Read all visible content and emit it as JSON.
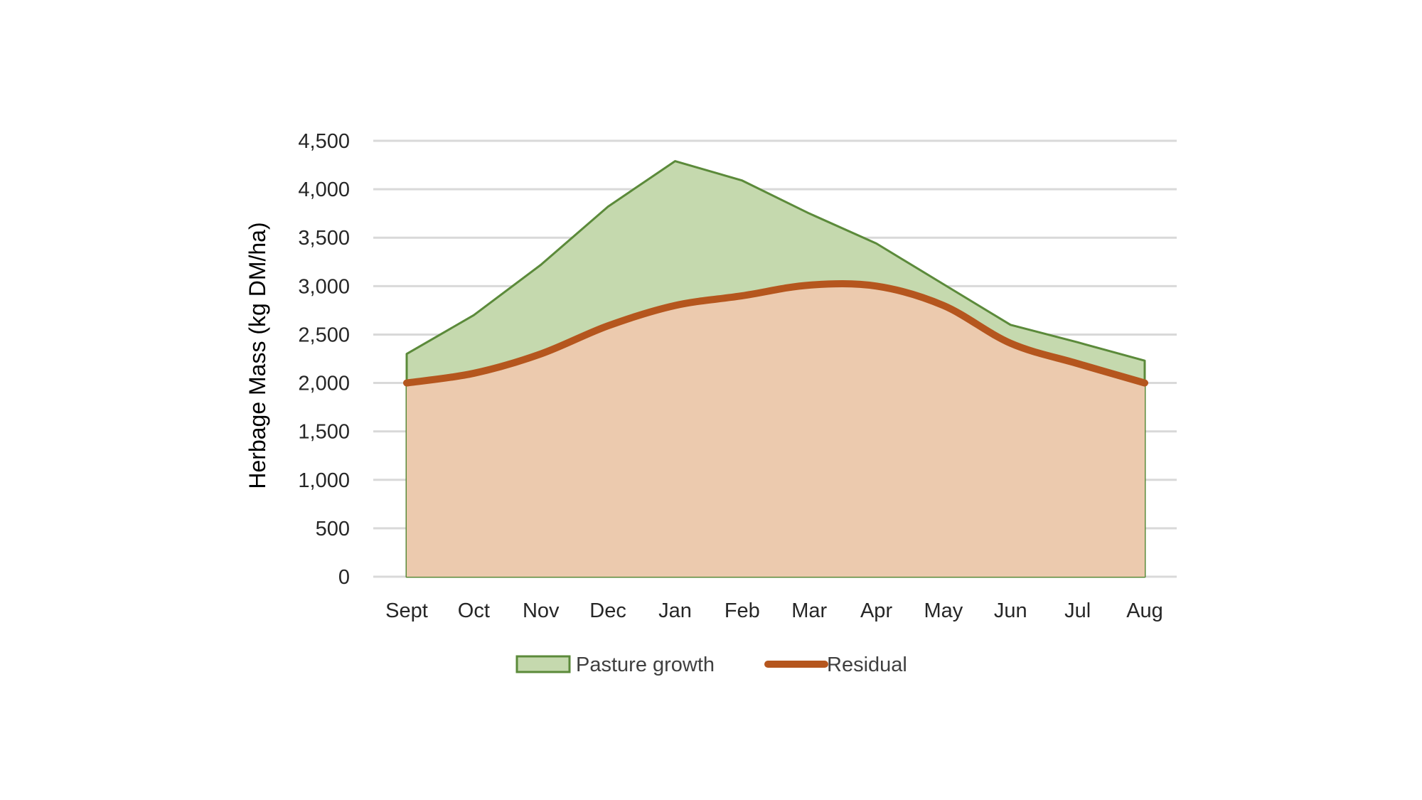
{
  "chart_data": {
    "type": "area",
    "title": "",
    "xlabel": "",
    "ylabel": "Herbage Mass (kg DM/ha)",
    "categories": [
      "Sept",
      "Oct",
      "Nov",
      "Dec",
      "Jan",
      "Feb",
      "Mar",
      "Apr",
      "May",
      "Jun",
      "Jul",
      "Aug"
    ],
    "ylim": [
      0,
      4500
    ],
    "yticks": [
      0,
      500,
      1000,
      1500,
      2000,
      2500,
      3000,
      3500,
      4000,
      4500
    ],
    "ytick_labels": [
      "0",
      "500",
      "1,000",
      "1,500",
      "2,000",
      "2,500",
      "3,000",
      "3,500",
      "4,000",
      "4,500"
    ],
    "grid": true,
    "legend_position": "bottom",
    "series": [
      {
        "name": "Pasture growth",
        "kind": "area",
        "values": [
          2300,
          2700,
          3220,
          3820,
          4290,
          4090,
          3750,
          3440,
          3020,
          2600,
          2420,
          2230
        ],
        "fill": "#c5d9ae",
        "stroke": "#5b8a3a"
      },
      {
        "name": "Residual",
        "kind": "smooth-line-area",
        "values": [
          2000,
          2100,
          2300,
          2590,
          2800,
          2900,
          3010,
          3000,
          2800,
          2410,
          2200,
          2000
        ],
        "fill": "#eccaae",
        "stroke": "#b5561e"
      }
    ]
  }
}
